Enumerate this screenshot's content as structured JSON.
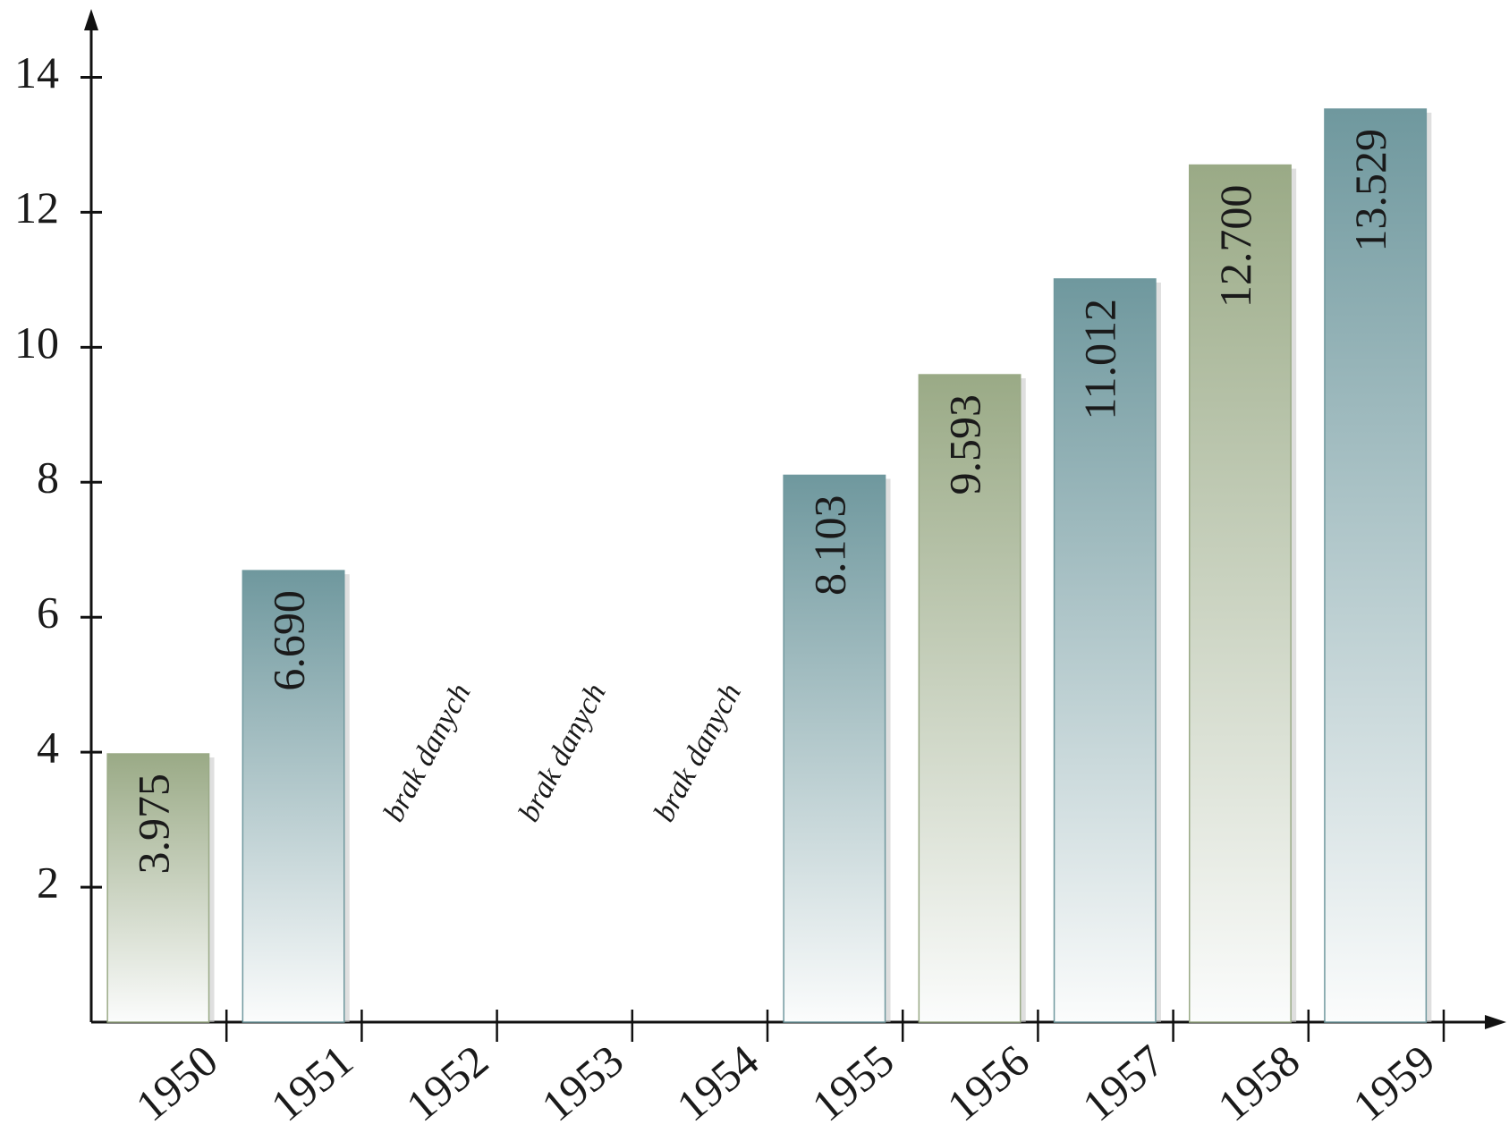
{
  "chart_data": {
    "type": "bar",
    "categories": [
      "1950",
      "1951",
      "1952",
      "1953",
      "1954",
      "1955",
      "1956",
      "1957",
      "1958",
      "1959"
    ],
    "values": [
      3.975,
      6.69,
      null,
      null,
      null,
      8.103,
      9.593,
      11.012,
      12.7,
      13.529
    ],
    "value_labels": [
      "3.975",
      "6.690",
      "brak danych",
      "brak danych",
      "brak danych",
      "8.103",
      "9.593",
      "11.012",
      "12.700",
      "13.529"
    ],
    "colors": [
      "#9aaa86",
      "#6f989e",
      null,
      null,
      null,
      "#6f989e",
      "#9aaa86",
      "#6f989e",
      "#9aaa86",
      "#6f989e"
    ],
    "ylim": [
      0,
      15
    ],
    "yticks": [
      2,
      4,
      6,
      8,
      10,
      12,
      14
    ],
    "grid": false
  }
}
